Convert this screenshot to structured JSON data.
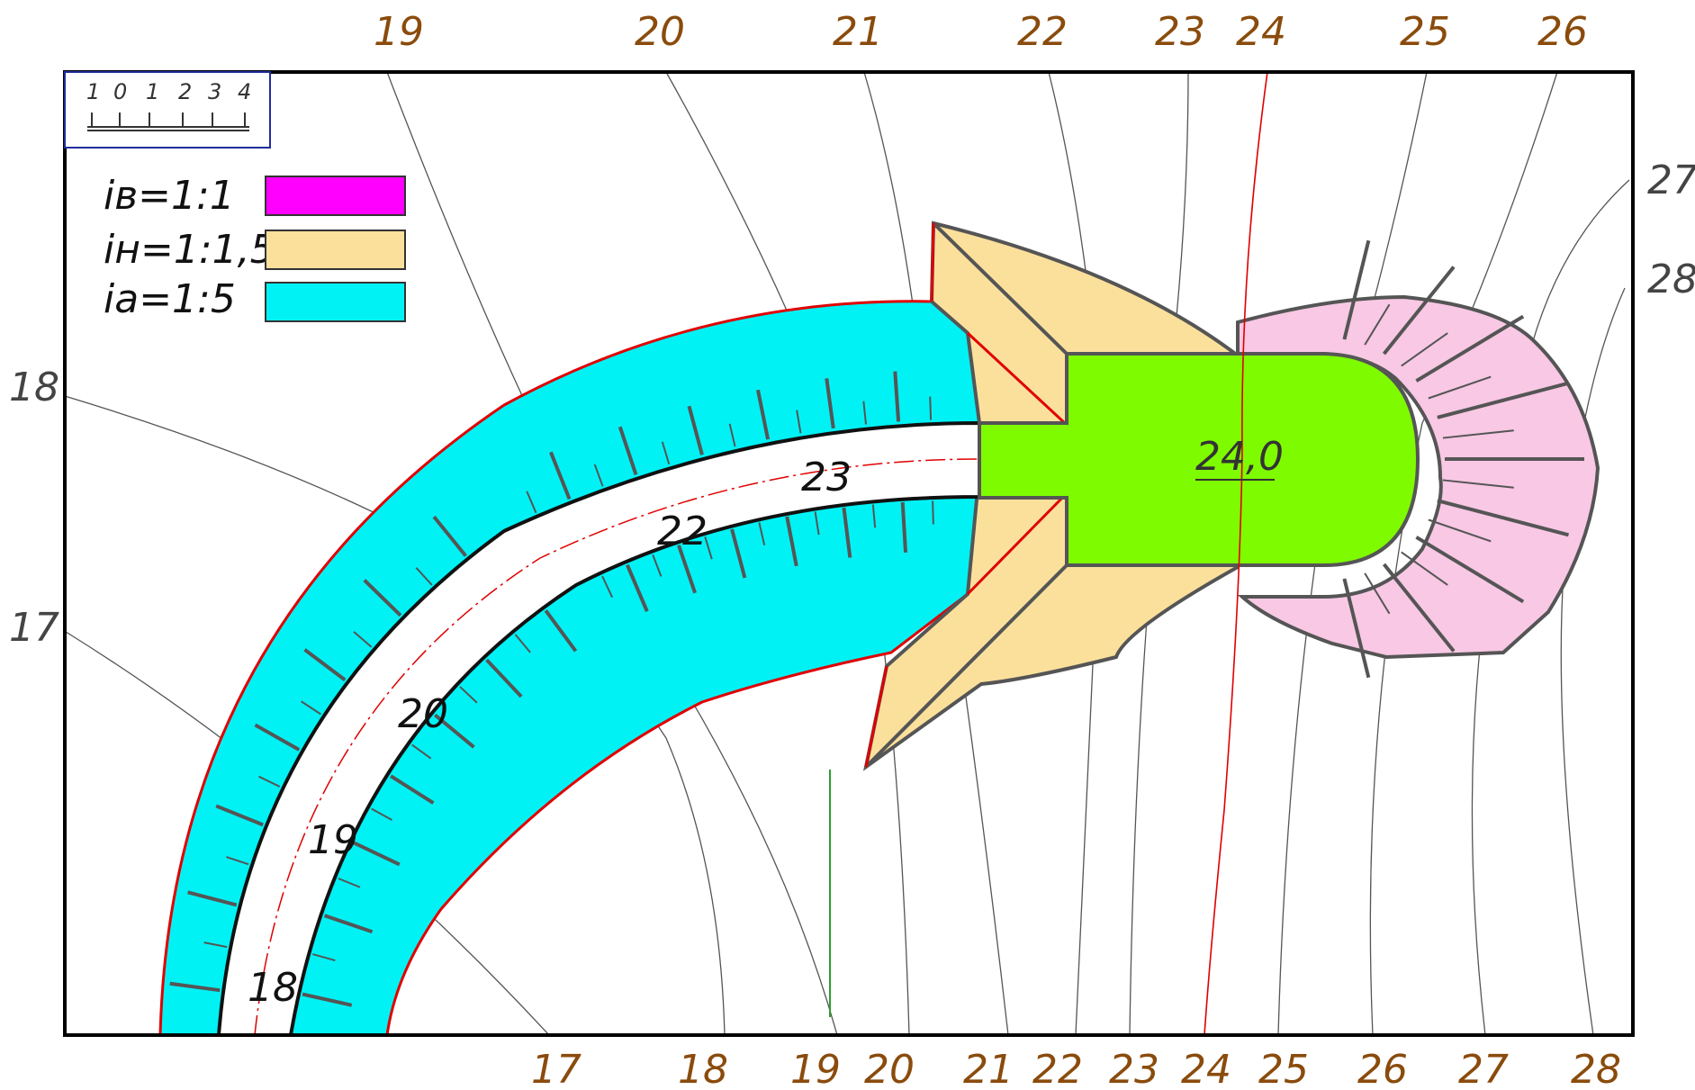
{
  "legend": {
    "rows": [
      {
        "label": "iв=1:1",
        "color": "#ff00ff"
      },
      {
        "label": "iн=1:1,5",
        "color": "#fbe09c"
      },
      {
        "label": "iа=1:5",
        "color": "#00f2f5"
      }
    ]
  },
  "scale_bar": {
    "ticks": [
      "1",
      "0",
      "1",
      "2",
      "3",
      "4"
    ]
  },
  "contours": {
    "top": [
      "19",
      "20",
      "21",
      "22",
      "23",
      "24",
      "25",
      "26"
    ],
    "bottom": [
      "17",
      "18",
      "19",
      "20",
      "21",
      "22",
      "23",
      "24",
      "25",
      "26",
      "27",
      "28"
    ],
    "left": [
      "18",
      "17"
    ],
    "right": [
      "27",
      "28"
    ]
  },
  "road_labels": [
    "23",
    "22",
    "20",
    "19",
    "18"
  ],
  "platform_mark": "24,0",
  "colors": {
    "embankment_slope": "#00f2f5",
    "cut_slope": "#fbe09c",
    "platform": "#7ffb00",
    "pink_slope": "#f8c8e4",
    "design_line": "#e00000",
    "frame": "#000000"
  }
}
